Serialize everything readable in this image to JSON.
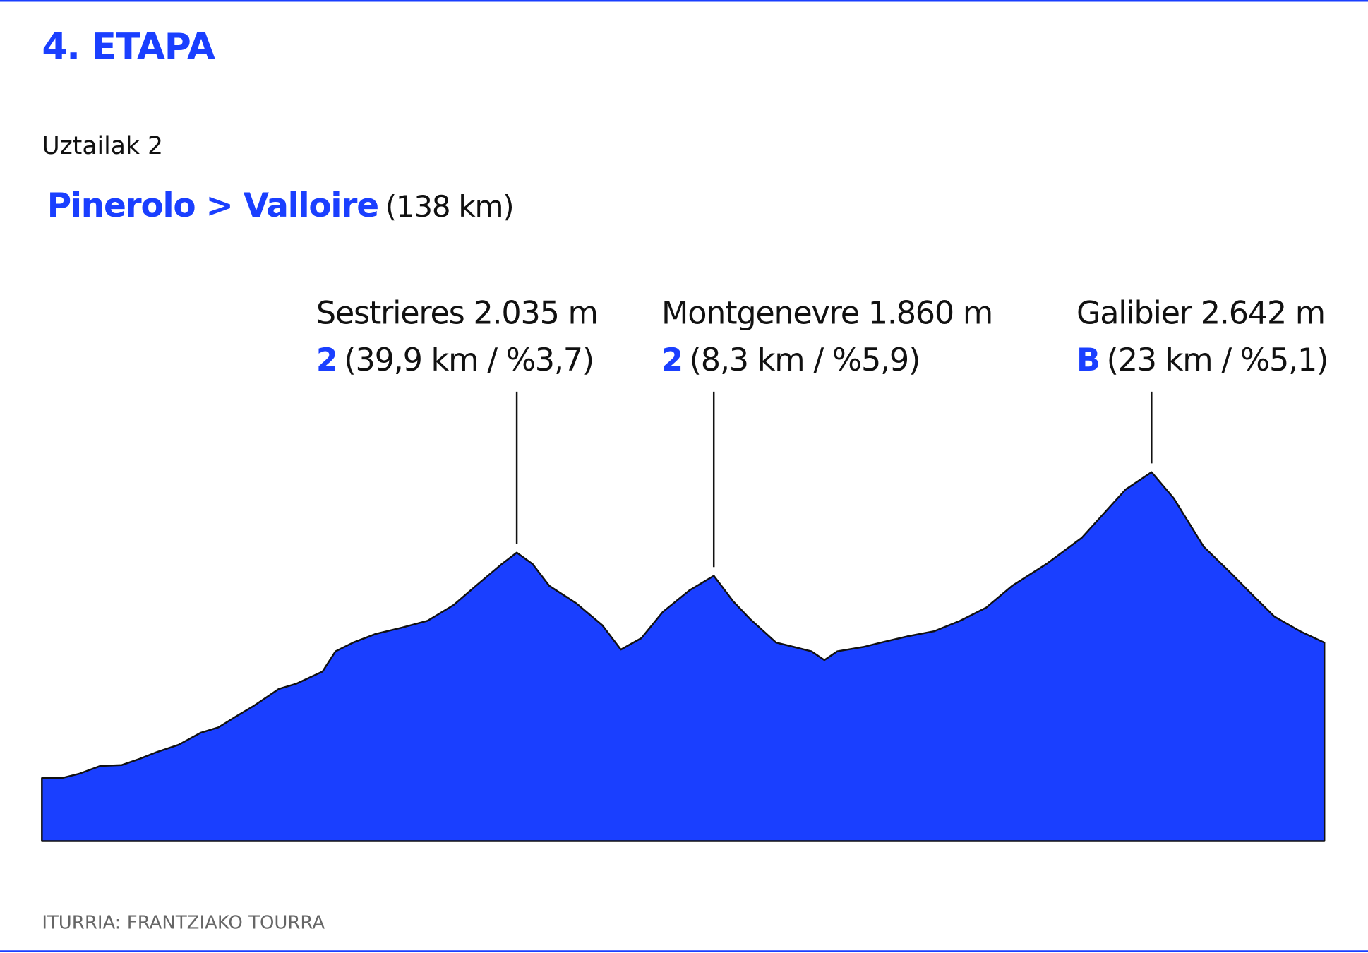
{
  "chart_data": {
    "type": "area",
    "title": "4. ETAPA",
    "subtitle": "Uztailak 2",
    "route": "Pinerolo > Valloire",
    "distance": "(138 km)",
    "color": "#1a3fff",
    "xlim": [
      0,
      138
    ],
    "ylim": [
      -142,
      2800
    ],
    "x": [
      0,
      2.1,
      4.0,
      6.3,
      8.6,
      10.5,
      12.4,
      14.7,
      17.1,
      19.0,
      20.8,
      22.7,
      25.5,
      27.4,
      30.2,
      31.6,
      33.5,
      35.9,
      38.7,
      41.5,
      44.3,
      46.7,
      49.5,
      51.1,
      52.8,
      54.6,
      57.5,
      60.3,
      62.3,
      64.5,
      66.8,
      69.7,
      72.3,
      74.4,
      76.2,
      79.0,
      80.9,
      82.8,
      84.2,
      85.6,
      88.4,
      90.3,
      93.1,
      96.0,
      98.8,
      101.6,
      104.4,
      108.1,
      111.9,
      116.6,
      119.4,
      121.8,
      125.0,
      127.9,
      130.7,
      132.6,
      135.4,
      138
    ],
    "values": [
      333,
      333,
      366,
      425,
      432,
      478,
      531,
      584,
      676,
      716,
      795,
      874,
      1006,
      1046,
      1138,
      1290,
      1356,
      1421,
      1468,
      1520,
      1639,
      1784,
      1949,
      2035,
      1949,
      1784,
      1652,
      1487,
      1303,
      1389,
      1586,
      1751,
      1860,
      1666,
      1534,
      1356,
      1323,
      1290,
      1224,
      1290,
      1323,
      1356,
      1402,
      1441,
      1520,
      1619,
      1784,
      1949,
      2147,
      2510,
      2642,
      2444,
      2081,
      1883,
      1685,
      1553,
      1441,
      1356
    ],
    "annotations": [
      {
        "label": "Sestrieres 2.035 m",
        "category": "2",
        "detail": "(39,9 km / %3,7)",
        "x": 51.1,
        "value": 2035
      },
      {
        "label": "Montgenevre 1.860 m",
        "category": "2",
        "detail": "(8,3 km / %5,9)",
        "x": 72.3,
        "value": 1860
      },
      {
        "label": "Galibier 2.642 m",
        "category": "B",
        "detail": "(23 km / %5,1)",
        "x": 119.4,
        "value": 2642
      }
    ],
    "source": "ITURRIA: FRANTZIAKO TOURRA"
  }
}
